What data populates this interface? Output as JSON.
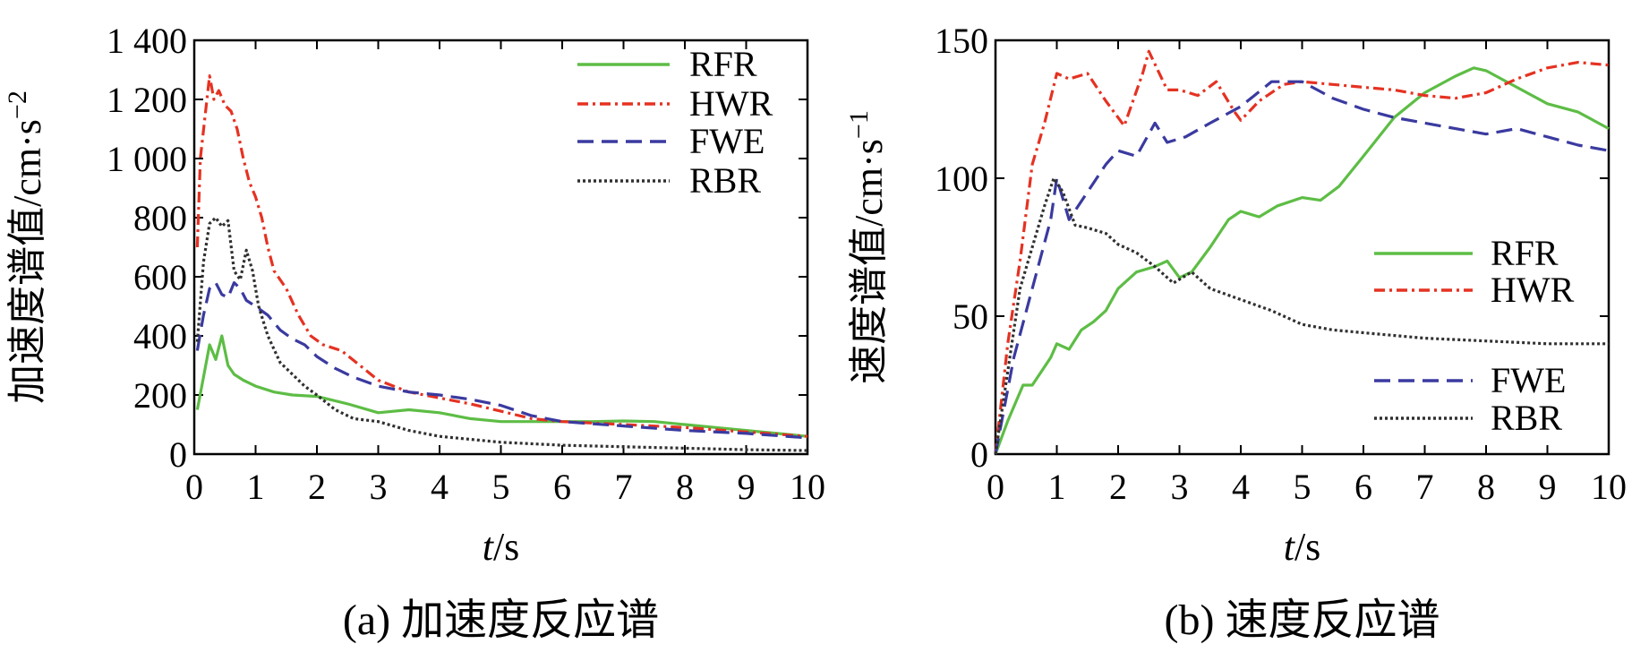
{
  "chart_data": [
    {
      "type": "line",
      "caption": "(a) 加速度反应谱",
      "xlabel_italic": "t",
      "xlabel_unit": "/s",
      "ylabel": "加速度谱值/cm·s",
      "ylabel_sup": "−2",
      "xlim": [
        0,
        10
      ],
      "ylim": [
        0,
        1400
      ],
      "x_ticks": [
        "0",
        "1",
        "2",
        "3",
        "4",
        "5",
        "6",
        "7",
        "8",
        "9",
        "10"
      ],
      "y_ticks": [
        "0",
        "200",
        "400",
        "600",
        "800",
        "1 000",
        "1 200",
        "1 400"
      ],
      "legend_position": "top-right",
      "series": [
        {
          "name": "RFR",
          "color": "#5dbd45",
          "dash": "solid",
          "points": [
            [
              0.05,
              150
            ],
            [
              0.15,
              260
            ],
            [
              0.25,
              370
            ],
            [
              0.35,
              320
            ],
            [
              0.45,
              400
            ],
            [
              0.55,
              300
            ],
            [
              0.65,
              270
            ],
            [
              0.8,
              250
            ],
            [
              1.0,
              230
            ],
            [
              1.3,
              210
            ],
            [
              1.6,
              200
            ],
            [
              2.0,
              195
            ],
            [
              2.5,
              170
            ],
            [
              3.0,
              140
            ],
            [
              3.5,
              150
            ],
            [
              4.0,
              140
            ],
            [
              4.5,
              120
            ],
            [
              5.0,
              110
            ],
            [
              5.5,
              110
            ],
            [
              6.0,
              110
            ],
            [
              6.5,
              110
            ],
            [
              7.0,
              112
            ],
            [
              7.5,
              110
            ],
            [
              8.0,
              100
            ],
            [
              8.5,
              90
            ],
            [
              9.0,
              80
            ],
            [
              9.5,
              70
            ],
            [
              10.0,
              60
            ]
          ]
        },
        {
          "name": "HWR",
          "color": "#e53222",
          "dash": "12,5,3,5",
          "points": [
            [
              0.05,
              700
            ],
            [
              0.1,
              1000
            ],
            [
              0.18,
              1150
            ],
            [
              0.25,
              1280
            ],
            [
              0.32,
              1200
            ],
            [
              0.4,
              1230
            ],
            [
              0.5,
              1180
            ],
            [
              0.6,
              1160
            ],
            [
              0.7,
              1100
            ],
            [
              0.8,
              1000
            ],
            [
              0.9,
              920
            ],
            [
              1.0,
              870
            ],
            [
              1.1,
              800
            ],
            [
              1.2,
              700
            ],
            [
              1.3,
              620
            ],
            [
              1.5,
              560
            ],
            [
              1.7,
              470
            ],
            [
              1.9,
              400
            ],
            [
              2.1,
              370
            ],
            [
              2.4,
              350
            ],
            [
              2.7,
              300
            ],
            [
              3.0,
              250
            ],
            [
              3.5,
              210
            ],
            [
              4.0,
              190
            ],
            [
              4.5,
              170
            ],
            [
              5.0,
              145
            ],
            [
              5.5,
              120
            ],
            [
              6.0,
              110
            ],
            [
              7.0,
              100
            ],
            [
              8.0,
              90
            ],
            [
              9.0,
              75
            ],
            [
              10.0,
              60
            ]
          ]
        },
        {
          "name": "FWE",
          "color": "#3a3aa0",
          "dash": "18,9",
          "points": [
            [
              0.05,
              350
            ],
            [
              0.15,
              470
            ],
            [
              0.25,
              560
            ],
            [
              0.35,
              580
            ],
            [
              0.45,
              540
            ],
            [
              0.55,
              530
            ],
            [
              0.65,
              580
            ],
            [
              0.75,
              560
            ],
            [
              0.85,
              520
            ],
            [
              1.0,
              500
            ],
            [
              1.2,
              470
            ],
            [
              1.4,
              420
            ],
            [
              1.6,
              390
            ],
            [
              1.8,
              370
            ],
            [
              2.0,
              330
            ],
            [
              2.3,
              290
            ],
            [
              2.6,
              260
            ],
            [
              3.0,
              230
            ],
            [
              3.5,
              210
            ],
            [
              4.0,
              200
            ],
            [
              4.5,
              185
            ],
            [
              5.0,
              165
            ],
            [
              5.5,
              130
            ],
            [
              6.0,
              110
            ],
            [
              7.0,
              95
            ],
            [
              8.0,
              80
            ],
            [
              9.0,
              70
            ],
            [
              10.0,
              55
            ]
          ]
        },
        {
          "name": "RBR",
          "color": "#303030",
          "dash": "3,3",
          "points": [
            [
              0.05,
              380
            ],
            [
              0.15,
              650
            ],
            [
              0.25,
              780
            ],
            [
              0.35,
              800
            ],
            [
              0.45,
              770
            ],
            [
              0.55,
              790
            ],
            [
              0.65,
              620
            ],
            [
              0.75,
              590
            ],
            [
              0.85,
              690
            ],
            [
              0.95,
              620
            ],
            [
              1.05,
              500
            ],
            [
              1.2,
              400
            ],
            [
              1.4,
              310
            ],
            [
              1.6,
              270
            ],
            [
              1.8,
              230
            ],
            [
              2.0,
              200
            ],
            [
              2.3,
              150
            ],
            [
              2.6,
              120
            ],
            [
              3.0,
              110
            ],
            [
              3.5,
              80
            ],
            [
              4.0,
              60
            ],
            [
              4.5,
              50
            ],
            [
              5.0,
              40
            ],
            [
              6.0,
              30
            ],
            [
              7.0,
              25
            ],
            [
              8.0,
              20
            ],
            [
              9.0,
              15
            ],
            [
              10.0,
              12
            ]
          ]
        }
      ]
    },
    {
      "type": "line",
      "caption": "(b) 速度反应谱",
      "xlabel_italic": "t",
      "xlabel_unit": "/s",
      "ylabel": "速度谱值/cm·s",
      "ylabel_sup": "−1",
      "xlim": [
        0,
        10
      ],
      "ylim": [
        0,
        150
      ],
      "x_ticks": [
        "0",
        "1",
        "2",
        "3",
        "4",
        "5",
        "6",
        "7",
        "8",
        "9",
        "10"
      ],
      "y_ticks": [
        "0",
        "50",
        "100",
        "150"
      ],
      "legend_position": "right",
      "series": [
        {
          "name": "RFR",
          "color": "#5dbd45",
          "dash": "solid",
          "points": [
            [
              0.0,
              0
            ],
            [
              0.2,
              12
            ],
            [
              0.45,
              25
            ],
            [
              0.6,
              25
            ],
            [
              0.75,
              30
            ],
            [
              0.9,
              35
            ],
            [
              1.0,
              40
            ],
            [
              1.2,
              38
            ],
            [
              1.4,
              45
            ],
            [
              1.6,
              48
            ],
            [
              1.8,
              52
            ],
            [
              2.0,
              60
            ],
            [
              2.3,
              66
            ],
            [
              2.6,
              68
            ],
            [
              2.8,
              70
            ],
            [
              3.0,
              64
            ],
            [
              3.2,
              66
            ],
            [
              3.5,
              75
            ],
            [
              3.8,
              85
            ],
            [
              4.0,
              88
            ],
            [
              4.3,
              86
            ],
            [
              4.6,
              90
            ],
            [
              5.0,
              93
            ],
            [
              5.3,
              92
            ],
            [
              5.6,
              97
            ],
            [
              6.0,
              108
            ],
            [
              6.5,
              122
            ],
            [
              7.0,
              131
            ],
            [
              7.5,
              137
            ],
            [
              7.8,
              140
            ],
            [
              8.0,
              139
            ],
            [
              8.5,
              133
            ],
            [
              9.0,
              127
            ],
            [
              9.5,
              124
            ],
            [
              10.0,
              118
            ]
          ]
        },
        {
          "name": "HWR",
          "color": "#e53222",
          "dash": "12,5,3,5",
          "points": [
            [
              0.0,
              0
            ],
            [
              0.2,
              40
            ],
            [
              0.4,
              70
            ],
            [
              0.6,
              105
            ],
            [
              0.8,
              120
            ],
            [
              1.0,
              138
            ],
            [
              1.2,
              136
            ],
            [
              1.5,
              138
            ],
            [
              1.8,
              128
            ],
            [
              2.1,
              119
            ],
            [
              2.4,
              138
            ],
            [
              2.5,
              146
            ],
            [
              2.8,
              132
            ],
            [
              3.0,
              132
            ],
            [
              3.3,
              130
            ],
            [
              3.6,
              135
            ],
            [
              3.9,
              124
            ],
            [
              4.0,
              121
            ],
            [
              4.3,
              128
            ],
            [
              4.7,
              134
            ],
            [
              5.0,
              135
            ],
            [
              5.5,
              134
            ],
            [
              6.0,
              133
            ],
            [
              6.5,
              132
            ],
            [
              7.0,
              130
            ],
            [
              7.5,
              129
            ],
            [
              8.0,
              131
            ],
            [
              8.5,
              136
            ],
            [
              9.0,
              140
            ],
            [
              9.5,
              142
            ],
            [
              10.0,
              141
            ]
          ]
        },
        {
          "name": "FWE",
          "color": "#3a3aa0",
          "dash": "18,9",
          "points": [
            [
              0.0,
              0
            ],
            [
              0.3,
              35
            ],
            [
              0.6,
              60
            ],
            [
              0.9,
              85
            ],
            [
              1.0,
              100
            ],
            [
              1.2,
              85
            ],
            [
              1.5,
              95
            ],
            [
              1.8,
              105
            ],
            [
              2.0,
              110
            ],
            [
              2.3,
              108
            ],
            [
              2.6,
              120
            ],
            [
              2.8,
              113
            ],
            [
              3.1,
              115
            ],
            [
              3.5,
              120
            ],
            [
              4.0,
              126
            ],
            [
              4.5,
              135
            ],
            [
              5.0,
              135
            ],
            [
              5.5,
              129
            ],
            [
              6.0,
              125
            ],
            [
              6.5,
              122
            ],
            [
              7.0,
              120
            ],
            [
              7.5,
              118
            ],
            [
              8.0,
              116
            ],
            [
              8.5,
              118
            ],
            [
              9.0,
              115
            ],
            [
              9.5,
              112
            ],
            [
              10.0,
              110
            ]
          ]
        },
        {
          "name": "RBR",
          "color": "#303030",
          "dash": "3,3",
          "points": [
            [
              0.0,
              0
            ],
            [
              0.2,
              30
            ],
            [
              0.4,
              60
            ],
            [
              0.6,
              75
            ],
            [
              0.8,
              90
            ],
            [
              0.95,
              100
            ],
            [
              1.1,
              95
            ],
            [
              1.3,
              83
            ],
            [
              1.5,
              82
            ],
            [
              1.8,
              80
            ],
            [
              2.0,
              76
            ],
            [
              2.3,
              73
            ],
            [
              2.6,
              68
            ],
            [
              2.9,
              62
            ],
            [
              3.2,
              66
            ],
            [
              3.5,
              60
            ],
            [
              4.0,
              56
            ],
            [
              4.5,
              52
            ],
            [
              5.0,
              47
            ],
            [
              5.5,
              45
            ],
            [
              6.0,
              44
            ],
            [
              7.0,
              42
            ],
            [
              8.0,
              41
            ],
            [
              9.0,
              40
            ],
            [
              10.0,
              40
            ]
          ]
        }
      ]
    }
  ]
}
